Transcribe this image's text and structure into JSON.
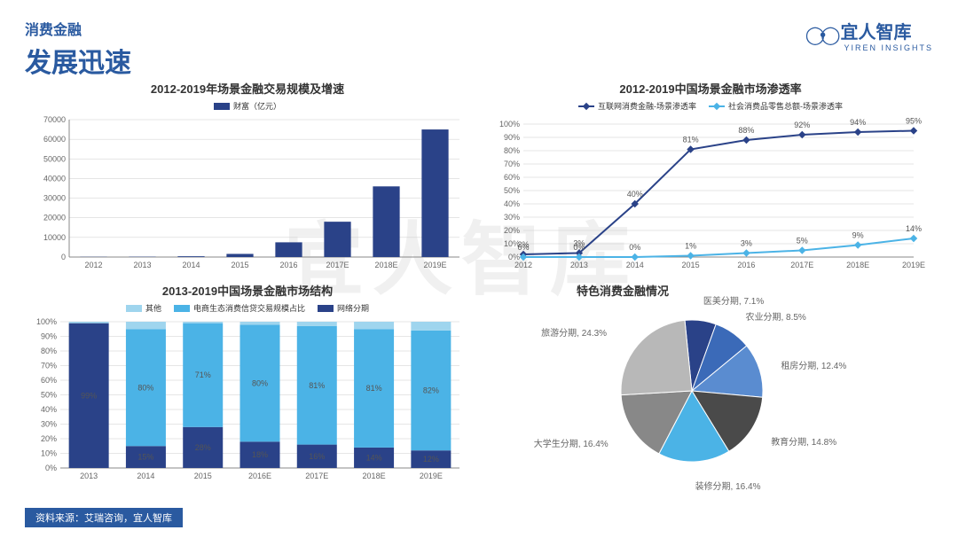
{
  "header": {
    "subtitle": "消费金融",
    "title": "发展迅速",
    "logo_text": "宜人智库",
    "logo_sub": "YIREN INSIGHTS"
  },
  "footer": {
    "source": "资料来源：艾瑞咨询，宜人智库"
  },
  "bar_chart": {
    "type": "bar",
    "title": "2012-2019年场景金融交易规模及增速",
    "legend": "财富（亿元）",
    "categories": [
      "2012",
      "2013",
      "2014",
      "2015",
      "2016",
      "2017E",
      "2018E",
      "2019E"
    ],
    "values": [
      100,
      150,
      400,
      1600,
      7500,
      18000,
      36000,
      65000
    ],
    "ylim": [
      0,
      70000
    ],
    "ytick_step": 10000,
    "bar_color": "#2a4288",
    "axis_color": "#888888",
    "grid_color": "#cccccc",
    "bg": "#ffffff",
    "label_fontsize": 9
  },
  "line_chart": {
    "type": "line",
    "title": "2012-2019中国场景金融市场渗透率",
    "legend": [
      "互联网消费金融-场景渗透率",
      "社会消费品零售总额-场景渗透率"
    ],
    "categories": [
      "2012",
      "2013",
      "2014",
      "2015",
      "2016",
      "2017E",
      "2018E",
      "2019E"
    ],
    "series": [
      {
        "color": "#2a4288",
        "values": [
          2,
          3,
          40,
          81,
          88,
          92,
          94,
          95
        ],
        "labels": [
          "2%",
          "3%",
          "40%",
          "81%",
          "88%",
          "92%",
          "94%",
          "95%"
        ]
      },
      {
        "color": "#4bb3e6",
        "values": [
          0,
          0,
          0,
          1,
          3,
          5,
          9,
          14
        ],
        "labels": [
          "0%",
          "0%",
          "0%",
          "1%",
          "3%",
          "5%",
          "9%",
          "14%"
        ]
      }
    ],
    "ylim": [
      0,
      100
    ],
    "ytick_step": 10,
    "yticks_suffix": "%",
    "grid_color": "#cccccc",
    "axis_color": "#888888"
  },
  "stacked_chart": {
    "type": "stacked-bar",
    "title": "2013-2019中国场景金融市场结构",
    "legend": [
      "其他",
      "电商生态消费信贷交易规模占比",
      "网络分期"
    ],
    "legend_colors": [
      "#9fd5ee",
      "#4bb3e6",
      "#2a4288"
    ],
    "categories": [
      "2013",
      "2014",
      "2015",
      "2016E",
      "2017E",
      "2018E",
      "2019E"
    ],
    "layers": [
      {
        "color": "#2a4288",
        "values": [
          99,
          15,
          28,
          18,
          16,
          14,
          12
        ],
        "labels": [
          "99%",
          "15%",
          "28%",
          "18%",
          "16%",
          "14%",
          "12%"
        ]
      },
      {
        "color": "#4bb3e6",
        "values": [
          0,
          80,
          71,
          80,
          81,
          81,
          82
        ],
        "labels": [
          "",
          "80%",
          "71%",
          "80%",
          "81%",
          "81%",
          "82%"
        ]
      },
      {
        "color": "#9fd5ee",
        "values": [
          1,
          5,
          1,
          2,
          3,
          5,
          6
        ],
        "labels": [
          "",
          "",
          "",
          "",
          "",
          "",
          ""
        ]
      }
    ],
    "ylim": [
      0,
      100
    ],
    "ytick_step": 10,
    "yticks_suffix": "%"
  },
  "pie_chart": {
    "type": "pie",
    "title": "特色消费金融情况",
    "slices": [
      {
        "label": "医美分期, 7.1%",
        "value": 7.1,
        "color": "#2a4288"
      },
      {
        "label": "农业分期, 8.5%",
        "value": 8.5,
        "color": "#3b6ab8"
      },
      {
        "label": "租房分期, 12.4%",
        "value": 12.4,
        "color": "#5a8cd0"
      },
      {
        "label": "教育分期, 14.8%",
        "value": 14.8,
        "color": "#4a4a4a"
      },
      {
        "label": "装修分期, 16.4%",
        "value": 16.4,
        "color": "#4bb3e6"
      },
      {
        "label": "大学生分期, 16.4%",
        "value": 16.4,
        "color": "#888888"
      },
      {
        "label": "旅游分期, 24.3%",
        "value": 24.3,
        "color": "#b8b8b8"
      }
    ],
    "bg": "#ffffff"
  }
}
